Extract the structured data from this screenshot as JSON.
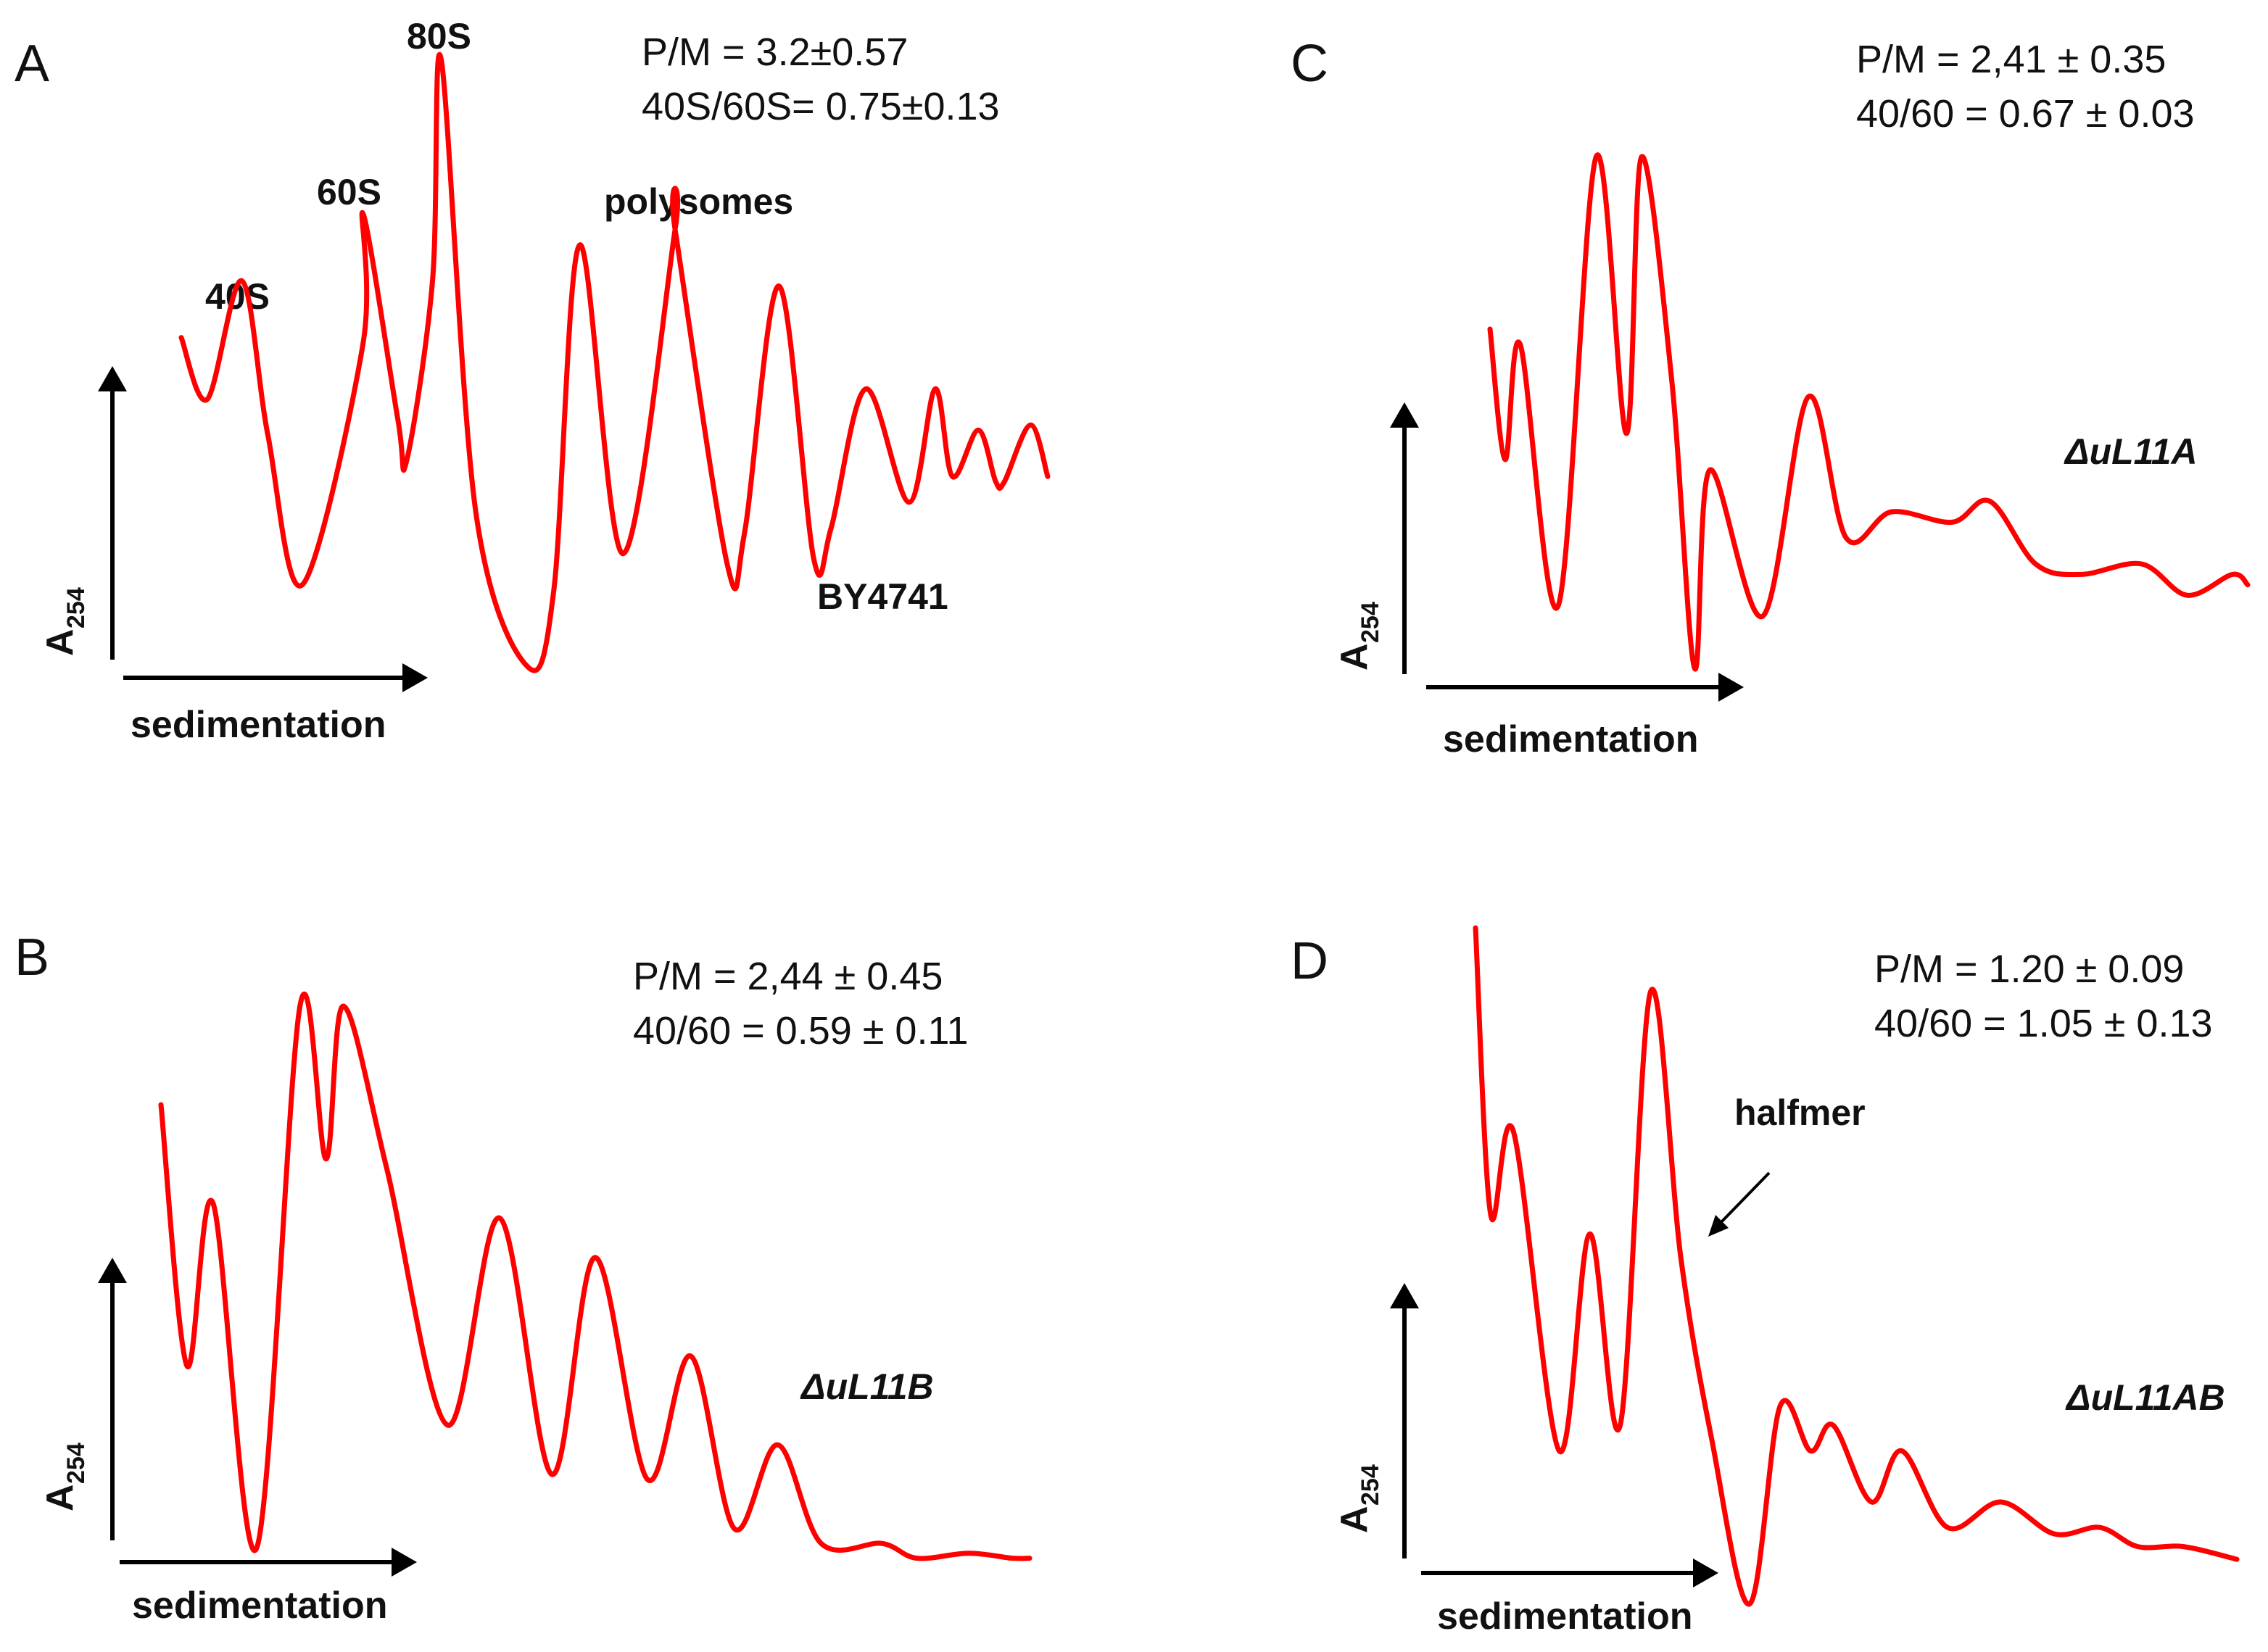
{
  "axis_labels": {
    "ylabel": "A",
    "ylabel_sub": "254",
    "xlabel": "sedimentation"
  },
  "chart_data": [
    {
      "panel": "A",
      "type": "line",
      "strain": "BY4741",
      "stats": [
        "P/M = 3.2±0.57",
        "40S/60S= 0.75±0.13"
      ],
      "peak_labels": [
        "40S",
        "60S",
        "80S",
        "polysomes"
      ],
      "x": [
        0.0,
        0.03,
        0.07,
        0.1,
        0.14,
        0.21,
        0.21,
        0.25,
        0.26,
        0.29,
        0.3,
        0.34,
        0.4,
        0.43,
        0.46,
        0.51,
        0.57,
        0.57,
        0.63,
        0.65,
        0.69,
        0.73,
        0.75,
        0.79,
        0.84,
        0.87,
        0.89,
        0.92,
        0.94,
        0.95,
        0.98,
        1.0
      ],
      "y": [
        0.64,
        0.52,
        0.75,
        0.45,
        0.16,
        0.63,
        0.88,
        0.48,
        0.4,
        0.75,
        1.18,
        0.3,
        0.0,
        0.15,
        0.82,
        0.22,
        0.85,
        0.85,
        0.2,
        0.26,
        0.74,
        0.21,
        0.27,
        0.54,
        0.32,
        0.54,
        0.37,
        0.46,
        0.36,
        0.36,
        0.47,
        0.37
      ]
    },
    {
      "panel": "B",
      "type": "line",
      "strain": "ΔuL11B",
      "stats": [
        "P/M  = 2,44 ±  0.45",
        "40/60 = 0.59 ±  0.11"
      ],
      "peak_labels": [],
      "x": [
        0.0,
        0.03,
        0.06,
        0.11,
        0.16,
        0.19,
        0.21,
        0.26,
        0.33,
        0.39,
        0.45,
        0.5,
        0.56,
        0.61,
        0.66,
        0.71,
        0.76,
        0.83,
        0.87,
        0.93,
        0.98,
        1.0
      ],
      "y": [
        0.95,
        0.42,
        0.75,
        0.05,
        1.15,
        0.84,
        1.15,
        0.82,
        0.3,
        0.72,
        0.2,
        0.64,
        0.19,
        0.44,
        0.09,
        0.26,
        0.06,
        0.06,
        0.03,
        0.04,
        0.03,
        0.03
      ]
    },
    {
      "panel": "C",
      "type": "line",
      "strain": "ΔuL11A",
      "stats": [
        "P/M  = 2,41 ± 0.35",
        "40/60 = 0.67 ± 0.03"
      ],
      "peak_labels": [],
      "x": [
        0.0,
        0.02,
        0.04,
        0.09,
        0.14,
        0.18,
        0.2,
        0.24,
        0.27,
        0.29,
        0.36,
        0.42,
        0.47,
        0.53,
        0.61,
        0.66,
        0.72,
        0.78,
        0.86,
        0.92,
        0.98,
        1.0
      ],
      "y": [
        0.55,
        0.3,
        0.52,
        0.02,
        0.88,
        0.35,
        0.88,
        0.45,
        -0.1,
        0.28,
        0.0,
        0.42,
        0.15,
        0.2,
        0.18,
        0.22,
        0.1,
        0.08,
        0.1,
        0.04,
        0.08,
        0.06
      ]
    },
    {
      "panel": "D",
      "type": "line",
      "strain": "ΔuL11AB",
      "stats": [
        "P/M  = 1.20 ± 0.09",
        "40/60 = 1.05 ± 0.13"
      ],
      "peak_labels": [
        "halfmer"
      ],
      "x": [
        0.0,
        0.02,
        0.05,
        0.11,
        0.15,
        0.19,
        0.23,
        0.27,
        0.31,
        0.36,
        0.4,
        0.44,
        0.47,
        0.52,
        0.56,
        0.62,
        0.69,
        0.76,
        0.82,
        0.87,
        0.93,
        1.0
      ],
      "y": [
        1.0,
        0.55,
        0.68,
        0.18,
        0.52,
        0.22,
        0.9,
        0.48,
        0.2,
        -0.06,
        0.25,
        0.18,
        0.22,
        0.1,
        0.18,
        0.06,
        0.1,
        0.05,
        0.06,
        0.03,
        0.03,
        0.01
      ]
    }
  ]
}
